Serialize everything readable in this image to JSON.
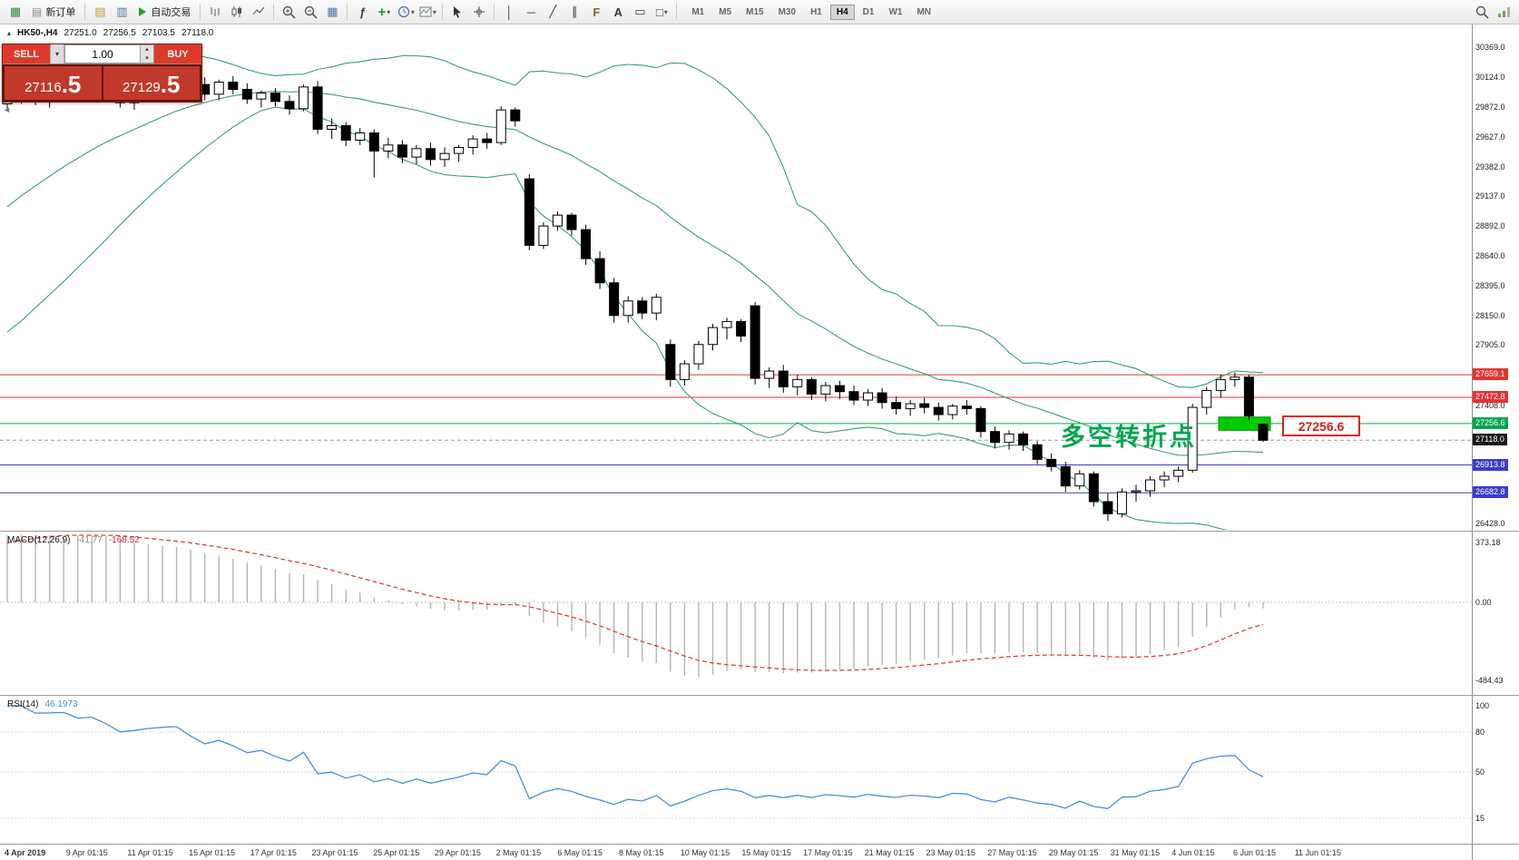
{
  "toolbar": {
    "new_order": "新订单",
    "auto_trading": "自动交易",
    "timeframes": [
      "M1",
      "M5",
      "M15",
      "M30",
      "H1",
      "H4",
      "D1",
      "W1",
      "MN"
    ],
    "active_timeframe": "H4"
  },
  "icons": {
    "caret": "▾",
    "spin_up": "▴",
    "spin_down": "▾",
    "collapse": "◄",
    "app": "▦",
    "doc": "▤",
    "profiles": "▤",
    "market_watch": "▥",
    "tile": "▦",
    "fx": "ƒ",
    "plus": "+",
    "crosshair": "+",
    "vline": "│",
    "hline": "─",
    "trendline": "╱",
    "channel": "∥",
    "fibonacci": "F",
    "text_tool": "A",
    "label_tool": "▭",
    "shapes": "□"
  },
  "symbol_bar": {
    "title": "HK50-,H4",
    "open": "27251.0",
    "high": "27256.5",
    "low": "27103.5",
    "close": "27118.0"
  },
  "trade_panel": {
    "sell_label": "SELL",
    "buy_label": "BUY",
    "lot": "1.00",
    "sell_price_int": "27116",
    "sell_price_dec": ".5",
    "buy_price_int": "27129",
    "buy_price_dec": ".5"
  },
  "annotation": {
    "text": "多空转折点",
    "color": "#00a651"
  },
  "price_tag": {
    "text": "27256.6"
  },
  "macd_panel": {
    "title": "MACD(12,26,9)",
    "main_value": "-41.77",
    "signal_value": "-168.52"
  },
  "rsi_panel": {
    "title": "RSI(14)",
    "value": "46.1973"
  },
  "chart_data": {
    "type": "candlestick",
    "symbol": "HK50-",
    "timeframe": "H4",
    "bands_color": "#3aa06a",
    "bollinger": {
      "period": 20,
      "deviation": 2
    },
    "macd": {
      "fast": 12,
      "slow": 26,
      "signal": 9
    },
    "rsi": {
      "period": 14
    },
    "price_axis": {
      "plain": [
        {
          "text": "30369.0",
          "p": 30369
        },
        {
          "text": "30124.0",
          "p": 30124
        },
        {
          "text": "29872.0",
          "p": 29872
        },
        {
          "text": "29627.0",
          "p": 29627
        },
        {
          "text": "29382.0",
          "p": 29382
        },
        {
          "text": "29137.0",
          "p": 29137
        },
        {
          "text": "28892.0",
          "p": 28892
        },
        {
          "text": "28640.0",
          "p": 28640
        },
        {
          "text": "28395.0",
          "p": 28395
        },
        {
          "text": "28150.0",
          "p": 28150
        },
        {
          "text": "27905.0",
          "p": 27905
        },
        {
          "text": "27408.0",
          "p": 27408
        },
        {
          "text": "26428.0",
          "p": 26428
        }
      ],
      "badges": [
        {
          "text": "27659.1",
          "p": 27659.1,
          "color": "#e03434"
        },
        {
          "text": "27472.8",
          "p": 27472.8,
          "color": "#e03434"
        },
        {
          "text": "27256.6",
          "p": 27256.6,
          "color": "#00a651"
        },
        {
          "text": "27118.0",
          "p": 27118.0,
          "color": "#1a1a1a"
        },
        {
          "text": "26913.8",
          "p": 26913.8,
          "color": "#3b3bcf"
        },
        {
          "text": "26682.8",
          "p": 26682.8,
          "color": "#3b3bcf"
        }
      ]
    },
    "hlines": [
      {
        "price": 27659.1,
        "color": "#e03434",
        "style": "solid"
      },
      {
        "price": 27472.8,
        "color": "#e03434",
        "style": "solid"
      },
      {
        "price": 27256.6,
        "color": "#00b050",
        "style": "solid"
      },
      {
        "price": 27118.0,
        "color": "#9a9a9a",
        "style": "dash"
      },
      {
        "price": 26913.8,
        "color": "#3b3bcf",
        "style": "solid"
      },
      {
        "price": 26682.8,
        "color": "#3b3bcf",
        "style": "solid"
      }
    ],
    "highlight_zone": {
      "price_top": 27310,
      "price_bottom": 27200,
      "color": "#00cc00"
    },
    "macd_axis": {
      "labels": [
        {
          "text": "373.18",
          "v": 373.18
        },
        {
          "text": "0.00",
          "v": 0
        },
        {
          "text": "-484.43",
          "v": -484.43
        }
      ]
    },
    "rsi_axis": {
      "labels": [
        {
          "text": "100",
          "v": 100
        },
        {
          "text": "80",
          "v": 80
        },
        {
          "text": "50",
          "v": 50
        },
        {
          "text": "15",
          "v": 15
        }
      ],
      "levels": [
        80,
        50,
        15
      ]
    },
    "time_labels": [
      "4 Apr 2019",
      "9 Apr 01:15",
      "11 Apr 01:15",
      "15 Apr 01:15",
      "17 Apr 01:15",
      "23 Apr 01:15",
      "25 Apr 01:15",
      "29 Apr 01:15",
      "2 May 01:15",
      "6 May 01:15",
      "8 May 01:15",
      "10 May 01:15",
      "15 May 01:15",
      "17 May 01:15",
      "21 May 01:15",
      "23 May 01:15",
      "27 May 01:15",
      "29 May 01:15",
      "31 May 01:15",
      "4 Jun 01:15",
      "6 Jun 01:15",
      "11 Jun 01:15"
    ],
    "prehistory_closes": [
      27900,
      27995,
      28090,
      28185,
      28280,
      28375,
      28470,
      28560,
      28650,
      28740,
      28830,
      28920,
      29010,
      29100,
      29190,
      29280,
      29370,
      29450,
      29530,
      29610,
      29700,
      29800
    ],
    "candles": [
      [
        29900,
        29980,
        29850,
        29950
      ],
      [
        29950,
        30010,
        29900,
        29990
      ],
      [
        29990,
        30020,
        29890,
        29920
      ],
      [
        29920,
        29990,
        29870,
        29960
      ],
      [
        29960,
        30060,
        29930,
        30030
      ],
      [
        30030,
        30070,
        29950,
        29980
      ],
      [
        29980,
        30080,
        29950,
        30050
      ],
      [
        30050,
        30100,
        29940,
        29990
      ],
      [
        29990,
        30040,
        29870,
        29910
      ],
      [
        29910,
        29990,
        29850,
        29970
      ],
      [
        29970,
        30080,
        29920,
        30060
      ],
      [
        30060,
        30160,
        30000,
        30120
      ],
      [
        30120,
        30200,
        30060,
        30150
      ],
      [
        30150,
        30180,
        30010,
        30060
      ],
      [
        30060,
        30120,
        29930,
        29980
      ],
      [
        29980,
        30100,
        29930,
        30080
      ],
      [
        30080,
        30130,
        29980,
        30020
      ],
      [
        30020,
        30070,
        29900,
        29940
      ],
      [
        29940,
        30010,
        29870,
        29990
      ],
      [
        29990,
        30030,
        29880,
        29920
      ],
      [
        29920,
        29970,
        29810,
        29860
      ],
      [
        29860,
        30060,
        29840,
        30040
      ],
      [
        30040,
        30090,
        29650,
        29690
      ],
      [
        29690,
        29780,
        29610,
        29720
      ],
      [
        29720,
        29750,
        29550,
        29600
      ],
      [
        29600,
        29700,
        29560,
        29660
      ],
      [
        29660,
        29690,
        29290,
        29510
      ],
      [
        29510,
        29620,
        29450,
        29560
      ],
      [
        29560,
        29600,
        29410,
        29460
      ],
      [
        29460,
        29560,
        29400,
        29530
      ],
      [
        29530,
        29580,
        29390,
        29440
      ],
      [
        29440,
        29540,
        29380,
        29490
      ],
      [
        29490,
        29560,
        29420,
        29540
      ],
      [
        29540,
        29640,
        29480,
        29610
      ],
      [
        29610,
        29660,
        29530,
        29580
      ],
      [
        29580,
        29880,
        29560,
        29850
      ],
      [
        29850,
        29870,
        29710,
        29760
      ],
      [
        29280,
        29320,
        28690,
        28730
      ],
      [
        28730,
        28920,
        28700,
        28890
      ],
      [
        28890,
        29010,
        28850,
        28980
      ],
      [
        28980,
        29000,
        28810,
        28860
      ],
      [
        28860,
        28900,
        28570,
        28620
      ],
      [
        28620,
        28680,
        28370,
        28420
      ],
      [
        28420,
        28460,
        28090,
        28150
      ],
      [
        28150,
        28310,
        28090,
        28270
      ],
      [
        28270,
        28300,
        28120,
        28170
      ],
      [
        28170,
        28330,
        28110,
        28300
      ],
      [
        27910,
        27950,
        27560,
        27620
      ],
      [
        27620,
        27780,
        27570,
        27750
      ],
      [
        27750,
        27940,
        27700,
        27910
      ],
      [
        27910,
        28080,
        27860,
        28050
      ],
      [
        28050,
        28130,
        27950,
        28100
      ],
      [
        28100,
        28120,
        27930,
        27980
      ],
      [
        28230,
        28260,
        27580,
        27630
      ],
      [
        27630,
        27720,
        27550,
        27690
      ],
      [
        27690,
        27740,
        27510,
        27560
      ],
      [
        27560,
        27660,
        27490,
        27620
      ],
      [
        27620,
        27640,
        27450,
        27500
      ],
      [
        27500,
        27600,
        27440,
        27570
      ],
      [
        27570,
        27610,
        27460,
        27520
      ],
      [
        27520,
        27570,
        27410,
        27450
      ],
      [
        27450,
        27540,
        27400,
        27510
      ],
      [
        27510,
        27550,
        27380,
        27430
      ],
      [
        27430,
        27480,
        27330,
        27380
      ],
      [
        27380,
        27450,
        27320,
        27420
      ],
      [
        27420,
        27470,
        27340,
        27390
      ],
      [
        27390,
        27430,
        27280,
        27330
      ],
      [
        27330,
        27420,
        27290,
        27400
      ],
      [
        27400,
        27450,
        27330,
        27380
      ],
      [
        27380,
        27400,
        27140,
        27190
      ],
      [
        27190,
        27230,
        27050,
        27100
      ],
      [
        27100,
        27200,
        27040,
        27170
      ],
      [
        27170,
        27190,
        27030,
        27080
      ],
      [
        27080,
        27110,
        26920,
        26960
      ],
      [
        26960,
        27010,
        26860,
        26900
      ],
      [
        26900,
        26940,
        26690,
        26740
      ],
      [
        26740,
        26870,
        26710,
        26840
      ],
      [
        26840,
        26860,
        26570,
        26610
      ],
      [
        26610,
        26680,
        26450,
        26510
      ],
      [
        26510,
        26720,
        26480,
        26690
      ],
      [
        26690,
        26750,
        26610,
        26700
      ],
      [
        26700,
        26820,
        26650,
        26790
      ],
      [
        26790,
        26860,
        26730,
        26820
      ],
      [
        26820,
        26900,
        26770,
        26870
      ],
      [
        26870,
        27420,
        26850,
        27390
      ],
      [
        27390,
        27560,
        27330,
        27530
      ],
      [
        27530,
        27660,
        27470,
        27620
      ],
      [
        27620,
        27680,
        27560,
        27640
      ],
      [
        27640,
        27660,
        27280,
        27320
      ],
      [
        27251,
        27256.5,
        27103.5,
        27118
      ]
    ]
  }
}
